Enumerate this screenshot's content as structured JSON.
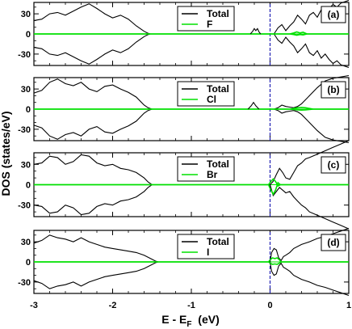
{
  "chart_data": [
    {
      "type": "line",
      "panel_label": "(a)",
      "legend_placement": "top-center",
      "xlim": [
        -3,
        1
      ],
      "ylim": [
        -47,
        47
      ],
      "xticks": [
        -3,
        -2,
        -1,
        0,
        1
      ],
      "yticks": [
        -30,
        0,
        30
      ],
      "series": [
        {
          "name": "Total",
          "color": "#000000",
          "symmetric": true,
          "x": [
            -3.0,
            -2.9,
            -2.8,
            -2.7,
            -2.6,
            -2.5,
            -2.4,
            -2.3,
            -2.2,
            -2.1,
            -2.0,
            -1.9,
            -1.8,
            -1.7,
            -1.6,
            -1.55,
            -1.52,
            0.05,
            0.1,
            0.15,
            0.2,
            0.25,
            0.3,
            0.35,
            0.4,
            0.45,
            0.5,
            0.55,
            0.6,
            0.65,
            0.7,
            0.75,
            0.8,
            0.85,
            0.9,
            0.95,
            1.0
          ],
          "y": [
            20,
            22,
            30,
            32,
            28,
            34,
            40,
            45,
            38,
            30,
            24,
            28,
            22,
            12,
            4,
            1,
            0,
            0,
            9,
            14,
            5,
            12,
            18,
            28,
            22,
            15,
            28,
            32,
            25,
            36,
            30,
            38,
            44,
            40,
            46,
            48,
            50
          ]
        },
        {
          "name": "F",
          "color": "#00e000",
          "symmetric": false,
          "x": [
            -3.0,
            0.25,
            0.3,
            0.34,
            0.38,
            0.42,
            0.47,
            1.0
          ],
          "y": [
            0,
            0,
            1.5,
            3,
            1.5,
            2.5,
            0,
            0
          ]
        }
      ],
      "features": [
        {
          "x": [
            -0.25,
            -0.22,
            -0.2,
            -0.18,
            -0.16,
            -0.14,
            -0.12
          ],
          "y": [
            0,
            4,
            8,
            5,
            8,
            3,
            0
          ]
        }
      ],
      "fermi_level_x": 0
    },
    {
      "type": "line",
      "panel_label": "(b)",
      "legend_placement": "top-center",
      "xlim": [
        -3,
        1
      ],
      "ylim": [
        -47,
        47
      ],
      "xticks": [
        -3,
        -2,
        -1,
        0,
        1
      ],
      "yticks": [
        -30,
        0,
        30
      ],
      "series": [
        {
          "name": "Total",
          "color": "#000000",
          "symmetric": true,
          "x": [
            -3.0,
            -2.9,
            -2.8,
            -2.7,
            -2.6,
            -2.5,
            -2.4,
            -2.3,
            -2.2,
            -2.1,
            -2.0,
            -1.9,
            -1.8,
            -1.7,
            -1.6,
            -1.55,
            -1.5,
            0.05,
            0.1,
            0.15,
            0.2,
            0.25,
            0.3,
            0.35,
            0.4,
            0.5,
            0.6,
            0.7,
            0.8,
            0.9,
            1.0
          ],
          "y": [
            24,
            28,
            40,
            45,
            38,
            35,
            40,
            30,
            26,
            34,
            36,
            30,
            25,
            18,
            6,
            2,
            0,
            0,
            2,
            6,
            4,
            3,
            2,
            4,
            8,
            20,
            32,
            42,
            46,
            48,
            50
          ]
        },
        {
          "name": "Cl",
          "color": "#00e000",
          "symmetric": false,
          "x": [
            -3.0,
            0.25,
            0.3,
            0.35,
            0.4,
            0.45,
            0.5,
            0.55,
            1.0
          ],
          "y": [
            0,
            0,
            1,
            2,
            2.5,
            2,
            1,
            0,
            0
          ]
        }
      ],
      "features": [
        {
          "x": [
            -0.28,
            -0.24,
            -0.21,
            -0.18,
            -0.14
          ],
          "y": [
            0,
            5,
            10,
            5,
            0
          ]
        }
      ],
      "fermi_level_x": 0
    },
    {
      "type": "line",
      "panel_label": "(c)",
      "legend_placement": "top-center",
      "xlim": [
        -3,
        1
      ],
      "ylim": [
        -47,
        47
      ],
      "xticks": [
        -3,
        -2,
        -1,
        0,
        1
      ],
      "yticks": [
        -30,
        0,
        30
      ],
      "series": [
        {
          "name": "Total",
          "color": "#000000",
          "symmetric": false,
          "x": [
            -3.0,
            -2.9,
            -2.8,
            -2.7,
            -2.6,
            -2.5,
            -2.4,
            -2.3,
            -2.2,
            -2.1,
            -2.0,
            -1.9,
            -1.8,
            -1.7,
            -1.6,
            -1.55,
            -1.5,
            0.0,
            0.04,
            0.08,
            0.12,
            0.16,
            0.2,
            0.25,
            0.3,
            0.35,
            0.4,
            0.45,
            0.5,
            0.6,
            0.7,
            0.8,
            0.9,
            1.0
          ],
          "y": [
            30,
            32,
            42,
            40,
            30,
            34,
            44,
            42,
            32,
            28,
            30,
            24,
            22,
            18,
            10,
            4,
            0,
            0,
            5,
            15,
            24,
            18,
            10,
            8,
            18,
            28,
            32,
            38,
            40,
            45,
            50,
            55,
            60,
            65
          ],
          "y_lower": [
            -30,
            -32,
            -42,
            -40,
            -30,
            -34,
            -44,
            -42,
            -32,
            -28,
            -30,
            -24,
            -22,
            -18,
            -10,
            -4,
            0,
            0,
            -16,
            -10,
            -4,
            -8,
            -12,
            -10,
            -18,
            -24,
            -30,
            -34,
            -40,
            -45,
            -50,
            -55,
            -60,
            -65
          ]
        },
        {
          "name": "Br",
          "color": "#00e000",
          "symmetric": false,
          "x": [
            -3.0,
            -0.02,
            0.01,
            0.04,
            0.07,
            0.1,
            0.13,
            1.0
          ],
          "y": [
            0,
            0,
            -8,
            -14,
            -8,
            3,
            0,
            0
          ]
        }
      ],
      "fermi_level_x": 0
    },
    {
      "type": "line",
      "panel_label": "(d)",
      "legend_placement": "top-center",
      "xlim": [
        -3,
        1
      ],
      "ylim": [
        -47,
        47
      ],
      "xticks": [
        -3,
        -2,
        -1,
        0,
        1
      ],
      "yticks": [
        -30,
        0,
        30
      ],
      "series": [
        {
          "name": "Total",
          "color": "#000000",
          "symmetric": true,
          "x": [
            -3.0,
            -2.9,
            -2.8,
            -2.7,
            -2.6,
            -2.5,
            -2.4,
            -2.3,
            -2.2,
            -2.1,
            -2.0,
            -1.9,
            -1.8,
            -1.7,
            -1.6,
            -1.5,
            -1.45,
            -1.42,
            0.0,
            0.02,
            0.05,
            0.08,
            0.11,
            0.14,
            0.17,
            0.2,
            0.25,
            0.3,
            0.4,
            0.5,
            0.6,
            0.7,
            0.8,
            0.9,
            1.0
          ],
          "y": [
            28,
            32,
            40,
            36,
            34,
            30,
            36,
            30,
            26,
            22,
            20,
            18,
            16,
            14,
            10,
            4,
            1,
            0,
            0,
            14,
            20,
            18,
            6,
            2,
            8,
            10,
            14,
            20,
            26,
            30,
            35,
            38,
            42,
            46,
            50
          ]
        },
        {
          "name": "I",
          "color": "#00e000",
          "symmetric": false,
          "x": [
            -3.0,
            -0.02,
            0.0,
            0.03,
            0.06,
            0.09,
            0.12,
            0.14,
            1.0
          ],
          "y": [
            0,
            0,
            3,
            6,
            5,
            6,
            3,
            0,
            0
          ]
        }
      ],
      "fermi_level_x": 0
    }
  ],
  "axis": {
    "xlabel_main": "E - E",
    "xlabel_sub": "F",
    "xlabel_unit": "  (eV)",
    "ylabel": "DOS (states/eV)",
    "xtick_labels": [
      "-3",
      "-2",
      "-1",
      "0",
      "1"
    ],
    "ytick_labels": [
      "30",
      "0",
      "-30"
    ]
  }
}
